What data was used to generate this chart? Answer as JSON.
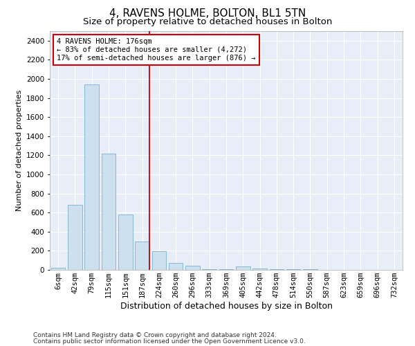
{
  "title": "4, RAVENS HOLME, BOLTON, BL1 5TN",
  "subtitle": "Size of property relative to detached houses in Bolton",
  "xlabel": "Distribution of detached houses by size in Bolton",
  "ylabel": "Number of detached properties",
  "categories": [
    "6sqm",
    "42sqm",
    "79sqm",
    "115sqm",
    "151sqm",
    "187sqm",
    "224sqm",
    "260sqm",
    "296sqm",
    "333sqm",
    "369sqm",
    "405sqm",
    "442sqm",
    "478sqm",
    "514sqm",
    "550sqm",
    "587sqm",
    "623sqm",
    "659sqm",
    "696sqm",
    "732sqm"
  ],
  "values": [
    20,
    680,
    1940,
    1220,
    580,
    300,
    195,
    75,
    45,
    10,
    5,
    35,
    15,
    5,
    5,
    5,
    0,
    0,
    0,
    0,
    0
  ],
  "bar_color": "#cce0f0",
  "bar_edge_color": "#7ab0d0",
  "vline_color": "#cc0000",
  "vline_index": 5,
  "annotation_text": "4 RAVENS HOLME: 176sqm\n← 83% of detached houses are smaller (4,272)\n17% of semi-detached houses are larger (876) →",
  "annotation_box_facecolor": "#ffffff",
  "annotation_box_edgecolor": "#cc0000",
  "ylim": [
    0,
    2500
  ],
  "yticks": [
    0,
    200,
    400,
    600,
    800,
    1000,
    1200,
    1400,
    1600,
    1800,
    2000,
    2200,
    2400
  ],
  "fig_facecolor": "#ffffff",
  "axes_facecolor": "#e8eef8",
  "grid_color": "#ffffff",
  "title_fontsize": 11,
  "subtitle_fontsize": 9.5,
  "xlabel_fontsize": 9,
  "ylabel_fontsize": 8,
  "tick_fontsize": 7.5,
  "annotation_fontsize": 7.5,
  "footer_fontsize": 6.5,
  "footer1": "Contains HM Land Registry data © Crown copyright and database right 2024.",
  "footer2": "Contains public sector information licensed under the Open Government Licence v3.0."
}
